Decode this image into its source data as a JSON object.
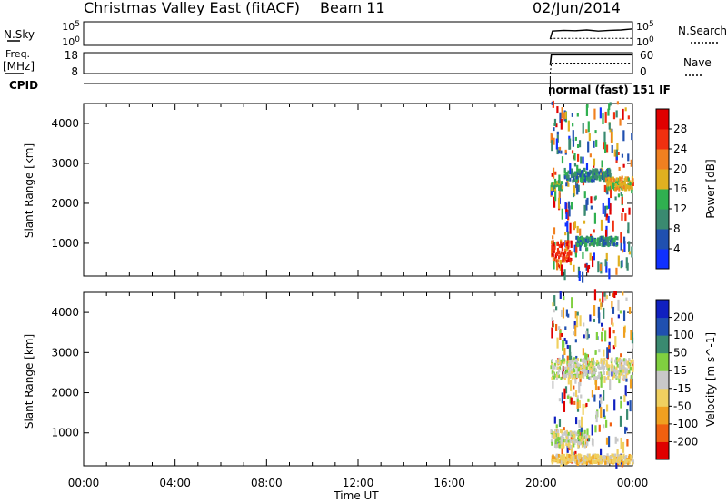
{
  "header": {
    "title": "Christmas Valley East (fitACF)",
    "beam": "Beam 11",
    "date": "02/Jun/2014"
  },
  "panels": {
    "nsky_label": "N.Sky",
    "nsearch_label": "N.Search",
    "freq_label_1": "Freq.",
    "freq_label_2": "[MHz]",
    "nave_label": "Nave",
    "cpid_label": "CPID",
    "cpid_value": "normal (fast) 151 IF"
  },
  "colors": {
    "background": "#ffffff",
    "axis": "#000000",
    "power_scale": [
      "#1030ff",
      "#2050b0",
      "#3a8a70",
      "#30b050",
      "#e0b020",
      "#f08020",
      "#f03010",
      "#e00000"
    ],
    "velocity_scale": [
      "#e00000",
      "#f06010",
      "#f0a020",
      "#f0d060",
      "#c8c8c8",
      "#80d040",
      "#3a8a70",
      "#2050b0",
      "#1020c0"
    ]
  },
  "chart_data": [
    {
      "type": "line",
      "name_label": "N.Sky / N.Search",
      "y_ticks_left": [
        "10^5",
        "10^0"
      ],
      "y_ticks_right": [
        "10^5",
        "10^0"
      ],
      "x_hours": [
        20.4,
        20.5,
        21.0,
        21.5,
        22.0,
        22.5,
        23.0,
        23.5,
        24.0
      ],
      "nsky_log10": [
        1.0,
        3.2,
        3.4,
        3.3,
        3.5,
        3.2,
        3.4,
        3.5,
        3.8
      ],
      "nsearch_log10": [
        1.0,
        1.2,
        1.2,
        1.2,
        1.2,
        1.2,
        1.2,
        1.2,
        1.2
      ]
    },
    {
      "type": "line",
      "name_label": "Freq. / Nave",
      "y_ticks_left": [
        "18",
        "8"
      ],
      "y_ticks_right": [
        "60",
        "0"
      ],
      "x_hours": [
        20.4,
        20.45,
        24.0
      ],
      "freq_mhz": [
        12,
        17,
        17
      ],
      "nave": [
        0,
        30,
        30
      ]
    },
    {
      "type": "heatmap",
      "quantity": "Power",
      "colorbar_label": "Power [dB]",
      "colorbar_ticks": [
        "28",
        "24",
        "20",
        "16",
        "12",
        "8",
        "4"
      ],
      "zlim": [
        0,
        32
      ],
      "ylabel": "Slant Range [km]",
      "y_ticks": [
        "1000",
        "2000",
        "3000",
        "4000"
      ],
      "ylim": [
        180,
        4500
      ],
      "xlim": [
        0,
        24
      ],
      "data_x_range": [
        20.4,
        24.0
      ],
      "features": [
        {
          "range_km": [
            2300,
            2500
          ],
          "hours": [
            20.4,
            20.9
          ],
          "value_db": 12
        },
        {
          "range_km": [
            2500,
            2800
          ],
          "hours": [
            21.0,
            23.0
          ],
          "value_db": 10
        },
        {
          "range_km": [
            2300,
            2600
          ],
          "hours": [
            22.8,
            24.0
          ],
          "value_db": 16
        },
        {
          "range_km": [
            500,
            1000
          ],
          "hours": [
            20.4,
            21.3
          ],
          "value_db": 26
        },
        {
          "range_km": [
            900,
            1100
          ],
          "hours": [
            21.5,
            23.3
          ],
          "value_db": 10
        }
      ]
    },
    {
      "type": "heatmap",
      "quantity": "Velocity",
      "colorbar_label": "Velocity [m s^-1]",
      "colorbar_ticks": [
        "200",
        "100",
        "50",
        "15",
        "-15",
        "-50",
        "-100",
        "-200"
      ],
      "zlim": [
        -250,
        250
      ],
      "ylabel": "Slant Range [km]",
      "y_ticks": [
        "1000",
        "2000",
        "3000",
        "4000"
      ],
      "ylim": [
        180,
        4500
      ],
      "xlim": [
        0,
        24
      ],
      "x_tick_labels": [
        "00:00",
        "04:00",
        "08:00",
        "12:00",
        "16:00",
        "20:00",
        "00:00"
      ],
      "xlabel": "Time UT",
      "data_x_range": [
        20.4,
        24.0
      ],
      "features": [
        {
          "range_km": [
            2300,
            2800
          ],
          "hours": [
            20.4,
            24.0
          ],
          "value_ms": 0
        },
        {
          "range_km": [
            600,
            1000
          ],
          "hours": [
            20.4,
            22.0
          ],
          "value_ms": 0
        },
        {
          "range_km": [
            200,
            400
          ],
          "hours": [
            20.4,
            24.0
          ],
          "value_ms": -40
        }
      ]
    }
  ]
}
